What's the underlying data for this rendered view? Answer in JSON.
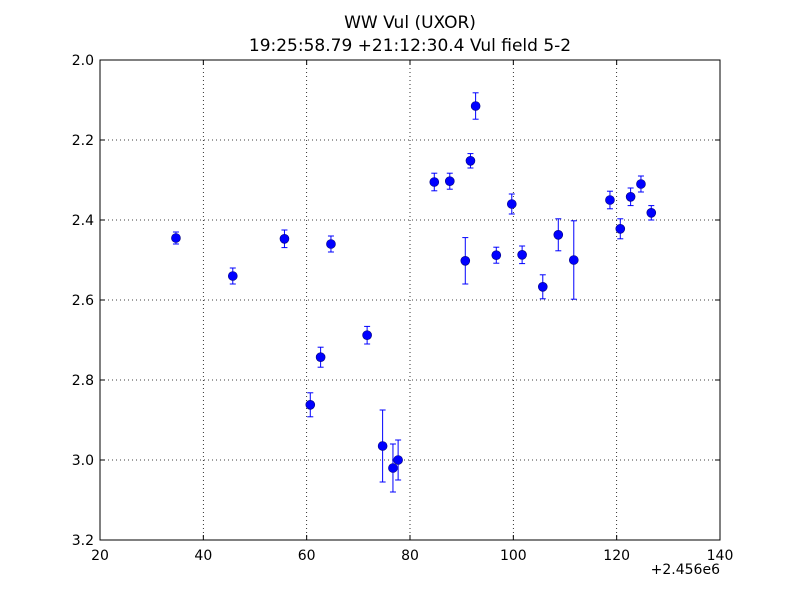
{
  "chart_data": {
    "type": "scatter",
    "title": "WW Vul (UXOR)",
    "subtitle": "19:25:58.79 +21:12:30.4 Vul field 5-2",
    "xlabel": "",
    "ylabel": "",
    "x_offset_label": "+2.456e6",
    "xlim": [
      20,
      140
    ],
    "ylim": [
      2.0,
      3.2
    ],
    "y_inverted": true,
    "grid": true,
    "marker_color": "#0000ff",
    "x_ticks": [
      "20",
      "40",
      "60",
      "80",
      "100",
      "120",
      "140"
    ],
    "y_ticks": [
      "2.0",
      "2.2",
      "2.4",
      "2.6",
      "2.8",
      "3.0",
      "3.2"
    ],
    "points": [
      {
        "x": 34.7,
        "y": 2.445,
        "err": 0.015
      },
      {
        "x": 45.7,
        "y": 2.54,
        "err": 0.02
      },
      {
        "x": 55.7,
        "y": 2.447,
        "err": 0.022
      },
      {
        "x": 60.7,
        "y": 2.862,
        "err": 0.03
      },
      {
        "x": 62.7,
        "y": 2.743,
        "err": 0.025
      },
      {
        "x": 64.7,
        "y": 2.46,
        "err": 0.02
      },
      {
        "x": 71.7,
        "y": 2.688,
        "err": 0.022
      },
      {
        "x": 74.7,
        "y": 2.965,
        "err": 0.09
      },
      {
        "x": 76.7,
        "y": 3.02,
        "err": 0.06
      },
      {
        "x": 77.7,
        "y": 3.0,
        "err": 0.05
      },
      {
        "x": 84.7,
        "y": 2.305,
        "err": 0.022
      },
      {
        "x": 87.7,
        "y": 2.303,
        "err": 0.02
      },
      {
        "x": 90.7,
        "y": 2.502,
        "err": 0.058
      },
      {
        "x": 91.7,
        "y": 2.252,
        "err": 0.018
      },
      {
        "x": 92.7,
        "y": 2.115,
        "err": 0.033
      },
      {
        "x": 96.7,
        "y": 2.488,
        "err": 0.02
      },
      {
        "x": 99.7,
        "y": 2.36,
        "err": 0.025
      },
      {
        "x": 101.7,
        "y": 2.487,
        "err": 0.022
      },
      {
        "x": 105.7,
        "y": 2.567,
        "err": 0.03
      },
      {
        "x": 108.7,
        "y": 2.437,
        "err": 0.04
      },
      {
        "x": 111.7,
        "y": 2.5,
        "err": 0.098
      },
      {
        "x": 118.7,
        "y": 2.35,
        "err": 0.022
      },
      {
        "x": 120.7,
        "y": 2.422,
        "err": 0.025
      },
      {
        "x": 122.7,
        "y": 2.342,
        "err": 0.022
      },
      {
        "x": 124.7,
        "y": 2.31,
        "err": 0.02
      },
      {
        "x": 126.7,
        "y": 2.382,
        "err": 0.018
      }
    ]
  }
}
